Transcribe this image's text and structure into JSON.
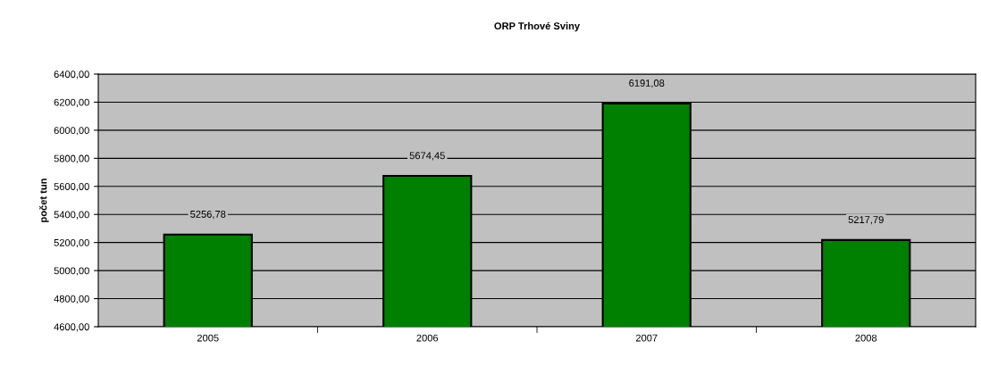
{
  "chart_data": {
    "type": "bar",
    "title": "ORP Trhové Sviny",
    "ylabel": "počet tun",
    "categories": [
      "2005",
      "2006",
      "2007",
      "2008"
    ],
    "values": [
      5256.78,
      5674.45,
      6191.08,
      5217.79
    ],
    "value_labels": [
      "5256,78",
      "5674,45",
      "6191,08",
      "5217,79"
    ],
    "color": "#008000",
    "ylim": [
      4600,
      6400
    ],
    "yticks": [
      {
        "value": 4600,
        "label": "4600,00"
      },
      {
        "value": 4800,
        "label": "4800,00"
      },
      {
        "value": 5000,
        "label": "5000,00"
      },
      {
        "value": 5200,
        "label": "5200,00"
      },
      {
        "value": 5400,
        "label": "5400,00"
      },
      {
        "value": 5600,
        "label": "5600,00"
      },
      {
        "value": 5800,
        "label": "5800,00"
      },
      {
        "value": 6000,
        "label": "6000,00"
      },
      {
        "value": 6200,
        "label": "6200,00"
      },
      {
        "value": 6400,
        "label": "6400,00"
      }
    ],
    "grid": "y",
    "legend": false
  }
}
